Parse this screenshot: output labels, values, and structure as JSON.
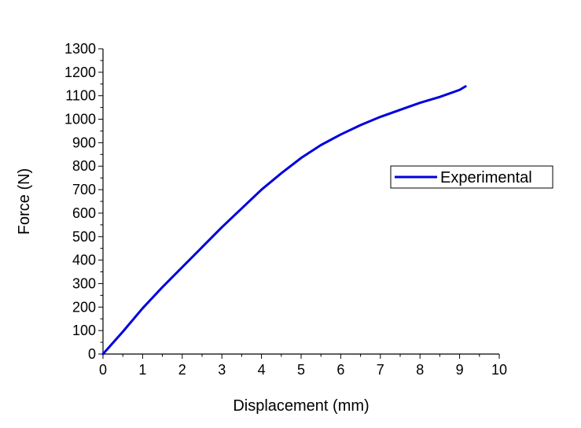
{
  "chart_data": {
    "type": "line",
    "title": "",
    "xlabel": "Displacement (mm)",
    "ylabel": "Force (N)",
    "xlim": [
      0,
      10
    ],
    "ylim": [
      0,
      1300
    ],
    "x_ticks": [
      0,
      1,
      2,
      3,
      4,
      5,
      6,
      7,
      8,
      9,
      10
    ],
    "y_ticks": [
      0,
      100,
      200,
      300,
      400,
      500,
      600,
      700,
      800,
      900,
      1000,
      1100,
      1200,
      1300
    ],
    "grid": false,
    "legend_position": "right",
    "series": [
      {
        "name": "Experimental",
        "color": "#0000dd",
        "x": [
          0,
          0.5,
          1,
          1.5,
          2,
          2.5,
          3,
          3.5,
          4,
          4.5,
          5,
          5.5,
          6,
          6.5,
          7,
          7.5,
          8,
          8.5,
          9,
          9.15
        ],
        "y": [
          0,
          95,
          195,
          285,
          370,
          455,
          540,
          620,
          700,
          770,
          835,
          890,
          935,
          975,
          1010,
          1040,
          1070,
          1095,
          1125,
          1140
        ]
      }
    ]
  }
}
